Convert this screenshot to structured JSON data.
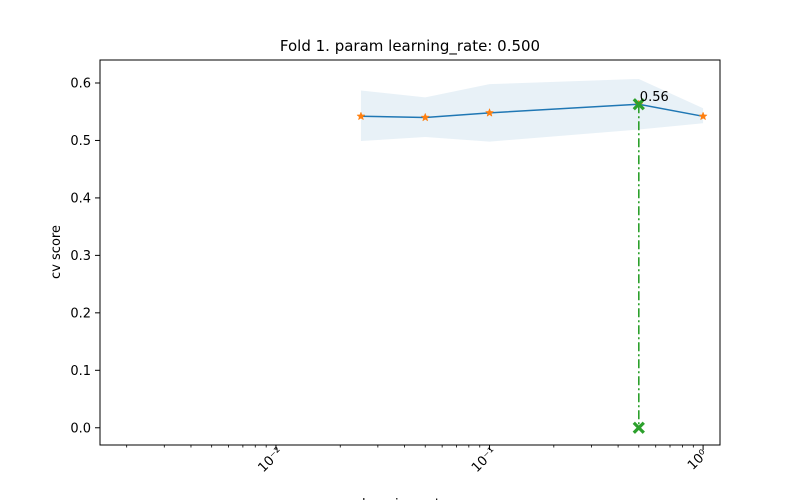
{
  "chart_data": {
    "type": "line",
    "title": "Fold 1. param learning_rate: 0.500",
    "xlabel": "learning_rate",
    "ylabel": "cv score",
    "xscale": "log",
    "xlim": [
      0.0015,
      1.2
    ],
    "ylim": [
      -0.03,
      0.64
    ],
    "grid": false,
    "yticks": [
      0.0,
      0.1,
      0.2,
      0.3,
      0.4,
      0.5,
      0.6
    ],
    "ytick_labels": [
      "0.0",
      "0.1",
      "0.2",
      "0.3",
      "0.4",
      "0.5",
      "0.6"
    ],
    "xticks": [
      0.01,
      0.1,
      1.0
    ],
    "xtick_labels": [
      "10⁻²",
      "10⁻¹",
      "10⁰"
    ],
    "series": [
      {
        "x": [
          0.025,
          0.05,
          0.1,
          0.5,
          1.0
        ],
        "y": [
          0.542,
          0.54,
          0.548,
          0.563,
          0.542
        ],
        "lower": [
          0.499,
          0.506,
          0.498,
          0.519,
          0.53
        ],
        "upper": [
          0.587,
          0.575,
          0.598,
          0.607,
          0.556
        ],
        "color": "#1f77b4",
        "band_color": "#1f77b4",
        "marker_color": "#ff7f0e",
        "marker": "star"
      }
    ],
    "best": {
      "x": 0.5,
      "y": 0.563,
      "label": "0.56",
      "color": "#2ca02c"
    }
  }
}
